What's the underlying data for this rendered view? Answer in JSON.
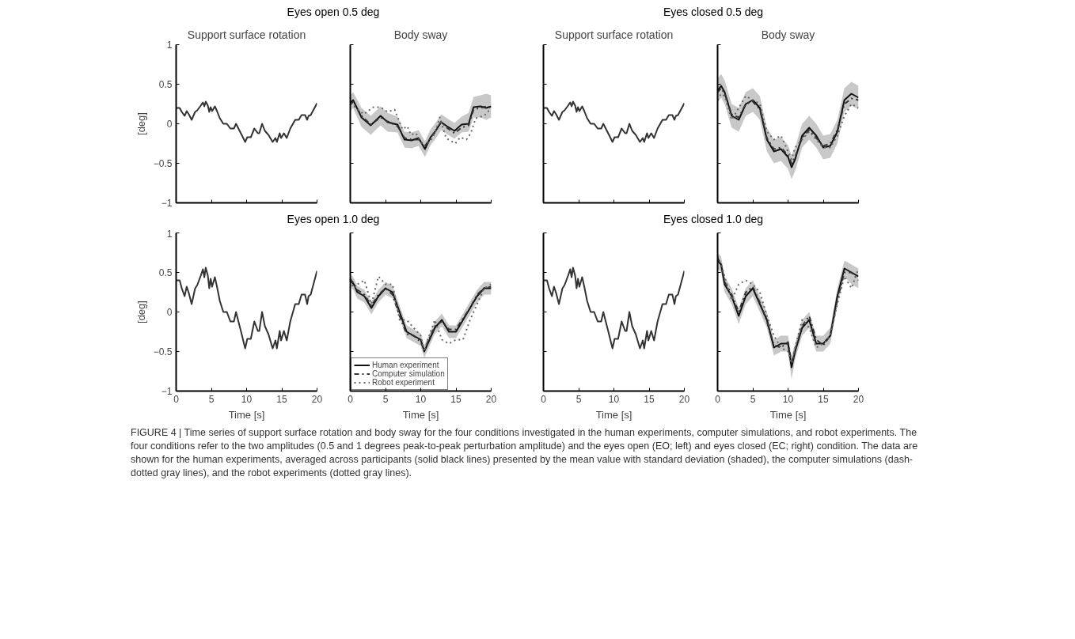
{
  "chart_data": [
    {
      "type": "line",
      "subtitle": "Eyes open 0.5 deg",
      "title": "Support surface rotation",
      "ylabel": "[deg]",
      "xlim": [
        0,
        20
      ],
      "ylim": [
        -1,
        1
      ],
      "xticks": [
        0,
        5,
        10,
        15,
        20
      ],
      "yticks": [
        -1,
        -0.5,
        0,
        0.5,
        1
      ],
      "tick_labels": "y",
      "grid": false,
      "marker": "none",
      "x": [
        0,
        0.5,
        0.8,
        1.2,
        1.5,
        1.8,
        2.2,
        2.7,
        3.0,
        3.5,
        3.8,
        4.0,
        4.2,
        4.5,
        4.7,
        4.9,
        5.1,
        5.5,
        5.8,
        6.2,
        6.7,
        7.2,
        7.7,
        8.2,
        8.5,
        8.9,
        9.3,
        9.8,
        10.1,
        10.6,
        11.1,
        11.6,
        11.8,
        12.2,
        12.6,
        13.1,
        13.7,
        14.1,
        14.3,
        14.7,
        14.9,
        15.3,
        15.7,
        16.2,
        16.9,
        17.4,
        17.8,
        18.3,
        18.6,
        18.8,
        19.1,
        20
      ],
      "series": [
        {
          "color": "#333333",
          "line_style": "solid",
          "values": [
            0.2,
            0.2,
            0.15,
            0.1,
            0.16,
            0.12,
            0.05,
            0.15,
            0.17,
            0.23,
            0.27,
            0.22,
            0.28,
            0.23,
            0.15,
            0.21,
            0.16,
            0.22,
            0.16,
            0.07,
            0,
            0,
            -0.06,
            -0.06,
            0,
            -0.07,
            -0.14,
            -0.23,
            -0.17,
            -0.17,
            -0.06,
            -0.12,
            -0.12,
            0,
            -0.09,
            -0.14,
            -0.23,
            -0.18,
            -0.23,
            -0.12,
            -0.18,
            -0.12,
            -0.18,
            -0.06,
            0.05,
            0.05,
            0.11,
            0.11,
            0.05,
            0.1,
            0.11,
            0.26
          ]
        }
      ],
      "annotations": [
        "FIGURE 4 | Time series of support surface rotation and body sway for the four conditions investigated in the human experiments, computer simulations, and robot experiments. The four conditions refer to the two amplitudes (0.5 and 1 degrees peak-to-peak perturbation amplitude) and the eyes open (EO; left) and eyes closed (EC; right) condition. The data are shown for the human experiments, averaged across participants (solid black lines) presented by the mean value with standard deviation (shaded), the computer simulations (dash-dotted gray lines), and the robot experiments (dotted gray lines)."
      ]
    },
    {
      "type": "line",
      "title": "Body sway",
      "xlim": [
        0,
        20
      ],
      "ylim": [
        -1,
        1
      ],
      "xticks": [
        0,
        5,
        10,
        15,
        20
      ],
      "yticks": [
        -1,
        -0.5,
        0,
        0.5,
        1
      ],
      "tick_labels": false,
      "grid": false,
      "marker": "none",
      "x": [
        0,
        0.4,
        1.6,
        2.9,
        4.3,
        5.3,
        6.7,
        7.7,
        8.7,
        9.7,
        10.6,
        11.4,
        12.1,
        12.9,
        13.7,
        14.8,
        15.8,
        16.8,
        17.5,
        18.5,
        19.3,
        20
      ],
      "series": [
        {
          "color": "#111111",
          "line_style": "solid",
          "values": [
            0.26,
            0.3,
            0.08,
            -0.02,
            0.1,
            0.02,
            -0.01,
            -0.2,
            -0.21,
            -0.18,
            -0.32,
            -0.17,
            -0.09,
            0.02,
            -0.03,
            -0.09,
            -0.01,
            0,
            0.21,
            0.22,
            0.2,
            0.22
          ],
          "lower": [
            0.16,
            0.2,
            -0.04,
            -0.14,
            -0.02,
            -0.1,
            -0.11,
            -0.3,
            -0.31,
            -0.28,
            -0.42,
            -0.27,
            -0.19,
            -0.08,
            -0.13,
            -0.19,
            -0.11,
            -0.1,
            0.08,
            0.08,
            0.05,
            0.08
          ],
          "upper": [
            0.36,
            0.4,
            0.2,
            0.1,
            0.22,
            0.14,
            0.09,
            -0.1,
            -0.11,
            -0.08,
            -0.22,
            -0.07,
            0.01,
            0.12,
            0.07,
            0.01,
            0.09,
            0.14,
            0.34,
            0.36,
            0.38,
            0.36
          ]
        },
        {
          "color": "#333333",
          "line_style": "dashed",
          "values": [
            0.24,
            0.28,
            0.1,
            -0.01,
            0.08,
            0.03,
            -0.03,
            -0.18,
            -0.2,
            -0.2,
            -0.28,
            -0.18,
            -0.1,
            0.03,
            -0.05,
            -0.12,
            -0.05,
            -0.02,
            0.18,
            0.2,
            0.22,
            0.2
          ]
        },
        {
          "color": "#666666",
          "line_style": "dotted",
          "x": [
            0,
            1.9,
            3.3,
            4.3,
            5.3,
            6.3,
            7.4,
            8.1,
            8.6,
            9.3,
            10.4,
            11.3,
            12.1,
            12.7,
            13.6,
            14.9,
            15.6,
            16.5,
            17.1,
            17.8,
            19,
            20
          ],
          "values": [
            0.26,
            0.12,
            0.21,
            0.21,
            0.15,
            0.18,
            -0.07,
            -0.03,
            -0.14,
            -0.12,
            -0.28,
            -0.23,
            -0.1,
            0.08,
            -0.18,
            -0.25,
            -0.17,
            -0.2,
            -0.12,
            0.07,
            0.1,
            0.2
          ]
        }
      ]
    },
    {
      "type": "line",
      "subtitle": "Eyes closed 0.5 deg",
      "title": "Support surface rotation",
      "xlim": [
        0,
        20
      ],
      "ylim": [
        -1,
        1
      ],
      "xticks": [
        0,
        5,
        10,
        15,
        20
      ],
      "yticks": [
        -1,
        -0.5,
        0,
        0.5,
        1
      ],
      "tick_labels": false,
      "grid": false,
      "marker": "none",
      "x": [
        0,
        0.5,
        0.8,
        1.2,
        1.5,
        1.8,
        2.2,
        2.7,
        3.0,
        3.5,
        3.8,
        4.0,
        4.2,
        4.5,
        4.7,
        4.9,
        5.1,
        5.5,
        5.8,
        6.2,
        6.7,
        7.2,
        7.7,
        8.2,
        8.5,
        8.9,
        9.3,
        9.8,
        10.1,
        10.6,
        11.1,
        11.6,
        11.8,
        12.2,
        12.6,
        13.1,
        13.7,
        14.1,
        14.3,
        14.7,
        14.9,
        15.3,
        15.7,
        16.2,
        16.9,
        17.4,
        17.8,
        18.3,
        18.6,
        18.8,
        19.1,
        20
      ],
      "series": [
        {
          "color": "#333333",
          "line_style": "solid",
          "values": [
            0.2,
            0.2,
            0.15,
            0.1,
            0.16,
            0.12,
            0.05,
            0.15,
            0.17,
            0.23,
            0.27,
            0.22,
            0.28,
            0.23,
            0.15,
            0.21,
            0.16,
            0.22,
            0.16,
            0.07,
            0,
            0,
            -0.06,
            -0.06,
            0,
            -0.07,
            -0.14,
            -0.23,
            -0.17,
            -0.17,
            -0.06,
            -0.12,
            -0.12,
            0,
            -0.09,
            -0.14,
            -0.23,
            -0.18,
            -0.23,
            -0.12,
            -0.18,
            -0.12,
            -0.18,
            -0.06,
            0.05,
            0.05,
            0.11,
            0.11,
            0.05,
            0.1,
            0.11,
            0.26
          ]
        }
      ]
    },
    {
      "type": "line",
      "title": "Body sway",
      "xlim": [
        0,
        20
      ],
      "ylim": [
        -1,
        1
      ],
      "xticks": [
        0,
        5,
        10,
        15,
        20
      ],
      "yticks": [
        -1,
        -0.5,
        0,
        0.5,
        1
      ],
      "tick_labels": false,
      "grid": false,
      "marker": "none",
      "x": [
        0,
        0.5,
        1,
        2,
        3,
        4,
        5,
        6,
        7,
        8,
        9,
        10,
        10.5,
        11,
        12,
        13,
        14,
        15,
        16,
        17,
        18,
        19,
        20
      ],
      "series": [
        {
          "color": "#111111",
          "line_style": "solid",
          "values": [
            0.42,
            0.48,
            0.4,
            0.1,
            0.05,
            0.25,
            0.3,
            0.2,
            -0.2,
            -0.35,
            -0.32,
            -0.42,
            -0.55,
            -0.45,
            -0.15,
            -0.05,
            -0.15,
            -0.3,
            -0.28,
            -0.1,
            0.3,
            0.38,
            0.33
          ],
          "lower": [
            0.27,
            0.33,
            0.25,
            -0.05,
            -0.1,
            0.1,
            0.15,
            0.05,
            -0.35,
            -0.5,
            -0.47,
            -0.57,
            -0.7,
            -0.6,
            -0.3,
            -0.2,
            -0.3,
            -0.45,
            -0.43,
            -0.25,
            0.15,
            0.23,
            0.18
          ],
          "upper": [
            0.57,
            0.63,
            0.55,
            0.25,
            0.2,
            0.4,
            0.45,
            0.35,
            -0.05,
            -0.2,
            -0.17,
            -0.27,
            -0.4,
            -0.3,
            0,
            0.1,
            0,
            -0.15,
            -0.13,
            0.05,
            0.45,
            0.53,
            0.48
          ]
        },
        {
          "color": "#333333",
          "line_style": "dashed",
          "values": [
            0.4,
            0.45,
            0.38,
            0.12,
            0.08,
            0.25,
            0.28,
            0.18,
            -0.18,
            -0.32,
            -0.3,
            -0.4,
            -0.5,
            -0.42,
            -0.18,
            -0.08,
            -0.18,
            -0.28,
            -0.25,
            -0.08,
            0.25,
            0.32,
            0.3
          ]
        },
        {
          "color": "#666666",
          "line_style": "dotted",
          "values": [
            0.3,
            0.38,
            0.35,
            0.05,
            0.2,
            0.35,
            0.3,
            0.25,
            -0.1,
            -0.2,
            -0.15,
            -0.35,
            -0.45,
            -0.3,
            -0.2,
            -0.1,
            -0.2,
            -0.3,
            -0.3,
            -0.15,
            0.1,
            0.25,
            0.2
          ]
        }
      ]
    },
    {
      "type": "line",
      "subtitle": "Eyes open 1.0 deg",
      "ylabel": "[deg]",
      "xlabel": "Time [s]",
      "xlim": [
        0,
        20
      ],
      "ylim": [
        -1,
        1
      ],
      "xticks": [
        0,
        5,
        10,
        15,
        20
      ],
      "yticks": [
        -1,
        -0.5,
        0,
        0.5,
        1
      ],
      "grid": false,
      "marker": "none",
      "x": [
        0,
        0.5,
        0.8,
        1.2,
        1.5,
        1.8,
        2.2,
        2.7,
        3.0,
        3.5,
        3.8,
        4.0,
        4.2,
        4.5,
        4.7,
        4.9,
        5.1,
        5.5,
        5.8,
        6.2,
        6.7,
        7.2,
        7.7,
        8.2,
        8.5,
        8.9,
        9.3,
        9.8,
        10.1,
        10.6,
        11.1,
        11.6,
        11.8,
        12.2,
        12.6,
        13.1,
        13.7,
        14.1,
        14.3,
        14.7,
        14.9,
        15.3,
        15.7,
        16.2,
        16.9,
        17.4,
        17.8,
        18.3,
        18.6,
        18.8,
        19.1,
        20
      ],
      "series": [
        {
          "color": "#333333",
          "line_style": "solid",
          "values": [
            0.4,
            0.4,
            0.3,
            0.2,
            0.32,
            0.24,
            0.1,
            0.3,
            0.34,
            0.46,
            0.54,
            0.44,
            0.56,
            0.46,
            0.3,
            0.42,
            0.32,
            0.44,
            0.32,
            0.14,
            0,
            0,
            -0.12,
            -0.12,
            0,
            -0.14,
            -0.28,
            -0.46,
            -0.34,
            -0.34,
            -0.12,
            -0.24,
            -0.24,
            0,
            -0.18,
            -0.28,
            -0.46,
            -0.36,
            -0.46,
            -0.24,
            -0.36,
            -0.24,
            -0.36,
            -0.12,
            0.1,
            0.1,
            0.22,
            0.22,
            0.1,
            0.2,
            0.22,
            0.52
          ]
        }
      ]
    },
    {
      "type": "line",
      "xlabel": "Time [s]",
      "xlim": [
        0,
        20
      ],
      "ylim": [
        -1,
        1
      ],
      "xticks": [
        0,
        5,
        10,
        15,
        20
      ],
      "yticks": [
        -1,
        -0.5,
        0,
        0.5,
        1
      ],
      "tick_labels": "x",
      "grid": false,
      "marker": "none",
      "legend": "bottom left",
      "x": [
        0,
        0.5,
        1,
        2,
        3,
        4,
        5,
        6,
        7,
        8,
        9,
        10,
        10.5,
        11,
        12,
        13,
        14,
        15,
        16,
        17,
        18,
        19,
        20
      ],
      "series": [
        {
          "name": "Human experiment",
          "color": "#111111",
          "line_style": "solid",
          "values": [
            0.4,
            0.35,
            0.25,
            0.2,
            0.05,
            0.2,
            0.3,
            0.25,
            0,
            -0.25,
            -0.3,
            -0.35,
            -0.5,
            -0.4,
            -0.2,
            -0.1,
            -0.25,
            -0.25,
            -0.1,
            0.05,
            0.2,
            0.3,
            0.3
          ],
          "lower": [
            0.32,
            0.27,
            0.17,
            0.12,
            -0.03,
            0.12,
            0.22,
            0.17,
            -0.08,
            -0.33,
            -0.38,
            -0.43,
            -0.58,
            -0.48,
            -0.28,
            -0.18,
            -0.33,
            -0.33,
            -0.18,
            -0.03,
            0.12,
            0.22,
            0.22
          ],
          "upper": [
            0.48,
            0.43,
            0.33,
            0.28,
            0.13,
            0.28,
            0.38,
            0.33,
            0.08,
            -0.17,
            -0.22,
            -0.27,
            -0.42,
            -0.32,
            -0.12,
            -0.02,
            -0.17,
            -0.17,
            -0.02,
            0.13,
            0.28,
            0.38,
            0.38
          ]
        },
        {
          "name": "Computer simulation",
          "color": "#333333",
          "line_style": "dashed",
          "values": [
            0.42,
            0.36,
            0.28,
            0.22,
            0.08,
            0.22,
            0.3,
            0.22,
            -0.05,
            -0.28,
            -0.3,
            -0.38,
            -0.48,
            -0.38,
            -0.18,
            -0.12,
            -0.22,
            -0.22,
            -0.08,
            0.05,
            0.22,
            0.3,
            0.32
          ]
        },
        {
          "name": "Robot experiment",
          "color": "#666666",
          "line_style": "dotted",
          "values": [
            0.4,
            0.3,
            0.35,
            0.4,
            0.1,
            0.45,
            0.35,
            0.35,
            -0.1,
            -0.1,
            -0.2,
            -0.3,
            -0.5,
            -0.35,
            -0.1,
            -0.35,
            -0.4,
            -0.35,
            -0.35,
            -0.1,
            0.1,
            0.3,
            0.35
          ]
        }
      ]
    },
    {
      "type": "line",
      "subtitle": "Eyes closed 1.0 deg",
      "xlabel": "Time [s]",
      "xlim": [
        0,
        20
      ],
      "ylim": [
        -1,
        1
      ],
      "xticks": [
        0,
        5,
        10,
        15,
        20
      ],
      "yticks": [
        -1,
        -0.5,
        0,
        0.5,
        1
      ],
      "tick_labels": "x",
      "grid": false,
      "marker": "none",
      "x": [
        0,
        0.5,
        0.8,
        1.2,
        1.5,
        1.8,
        2.2,
        2.7,
        3.0,
        3.5,
        3.8,
        4.0,
        4.2,
        4.5,
        4.7,
        4.9,
        5.1,
        5.5,
        5.8,
        6.2,
        6.7,
        7.2,
        7.7,
        8.2,
        8.5,
        8.9,
        9.3,
        9.8,
        10.1,
        10.6,
        11.1,
        11.6,
        11.8,
        12.2,
        12.6,
        13.1,
        13.7,
        14.1,
        14.3,
        14.7,
        14.9,
        15.3,
        15.7,
        16.2,
        16.9,
        17.4,
        17.8,
        18.3,
        18.6,
        18.8,
        19.1,
        20
      ],
      "series": [
        {
          "color": "#333333",
          "line_style": "solid",
          "values": [
            0.4,
            0.4,
            0.3,
            0.2,
            0.32,
            0.24,
            0.1,
            0.3,
            0.34,
            0.46,
            0.54,
            0.44,
            0.56,
            0.46,
            0.3,
            0.42,
            0.32,
            0.44,
            0.32,
            0.14,
            0,
            0,
            -0.12,
            -0.12,
            0,
            -0.14,
            -0.28,
            -0.46,
            -0.34,
            -0.34,
            -0.12,
            -0.24,
            -0.24,
            0,
            -0.18,
            -0.28,
            -0.46,
            -0.36,
            -0.46,
            -0.24,
            -0.36,
            -0.24,
            -0.36,
            -0.12,
            0.1,
            0.1,
            0.22,
            0.22,
            0.1,
            0.2,
            0.22,
            0.52
          ]
        }
      ]
    },
    {
      "type": "line",
      "xlabel": "Time [s]",
      "xlim": [
        0,
        20
      ],
      "ylim": [
        -1,
        1
      ],
      "xticks": [
        0,
        5,
        10,
        15,
        20
      ],
      "yticks": [
        -1,
        -0.5,
        0,
        0.5,
        1
      ],
      "tick_labels": "x",
      "grid": false,
      "marker": "none",
      "x": [
        0,
        0.5,
        1,
        2,
        3,
        4,
        5,
        6,
        7,
        8,
        9,
        10,
        10.5,
        11,
        12,
        13,
        14,
        15,
        16,
        17,
        18,
        19,
        20
      ],
      "series": [
        {
          "color": "#111111",
          "line_style": "solid",
          "values": [
            0.65,
            0.6,
            0.35,
            0.2,
            -0.05,
            0.2,
            0.3,
            0.1,
            -0.1,
            -0.45,
            -0.4,
            -0.4,
            -0.7,
            -0.5,
            -0.2,
            -0.1,
            -0.4,
            -0.4,
            -0.3,
            0.2,
            0.55,
            0.5,
            0.45
          ],
          "lower": [
            0.55,
            0.5,
            0.25,
            0.1,
            -0.15,
            0.1,
            0.2,
            0.0,
            -0.2,
            -0.55,
            -0.5,
            -0.5,
            -0.85,
            -0.6,
            -0.3,
            -0.2,
            -0.5,
            -0.5,
            -0.4,
            0.1,
            0.45,
            0.35,
            0.3
          ],
          "upper": [
            0.75,
            0.7,
            0.45,
            0.3,
            0.05,
            0.3,
            0.4,
            0.2,
            0,
            -0.35,
            -0.3,
            -0.3,
            -0.55,
            -0.4,
            -0.1,
            0,
            -0.3,
            -0.3,
            -0.2,
            0.3,
            0.65,
            0.6,
            0.55
          ]
        },
        {
          "color": "#333333",
          "line_style": "dashed",
          "values": [
            0.68,
            0.6,
            0.38,
            0.22,
            0,
            0.25,
            0.32,
            0.12,
            -0.12,
            -0.42,
            -0.45,
            -0.38,
            -0.65,
            -0.48,
            -0.18,
            -0.05,
            -0.35,
            -0.42,
            -0.3,
            0.15,
            0.5,
            0.5,
            0.4
          ]
        },
        {
          "color": "#666666",
          "line_style": "dotted",
          "values": [
            0.7,
            0.6,
            0.45,
            0.15,
            0.35,
            0.4,
            0.35,
            0.25,
            -0.05,
            -0.3,
            -0.45,
            -0.5,
            -0.65,
            -0.45,
            -0.1,
            -0.2,
            -0.45,
            -0.4,
            -0.3,
            0.1,
            0.45,
            0.3,
            0.55
          ]
        }
      ]
    }
  ]
}
